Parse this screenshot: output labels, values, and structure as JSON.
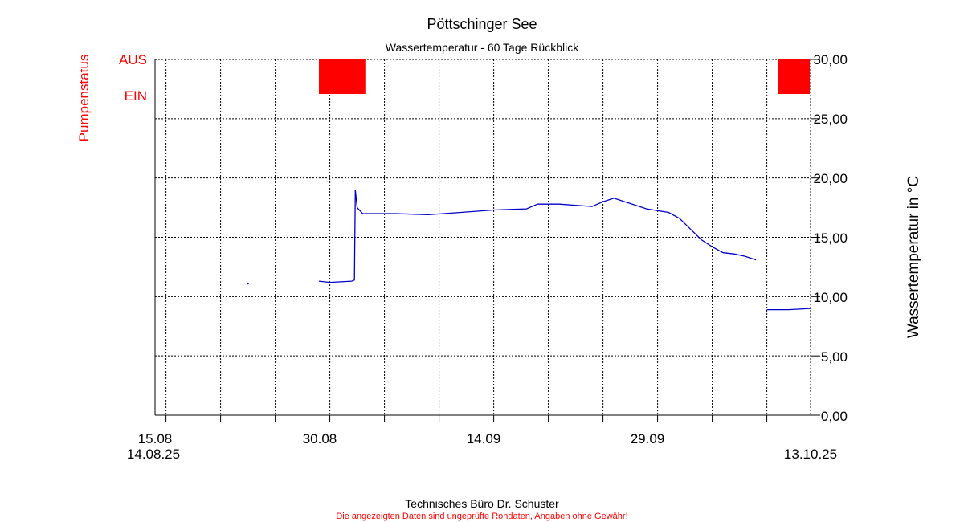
{
  "chart_data": {
    "type": "line",
    "title": "Pöttschinger See",
    "subtitle": "Wassertemperatur - 60 Tage Rückblick",
    "ylabel": "Wassertemperatur in °C",
    "ylim": [
      0,
      30
    ],
    "y_ticks": [
      "0,00",
      "5,00",
      "10,00",
      "15,00",
      "20,00",
      "25,00",
      "30,00"
    ],
    "x_range": [
      "2025-08-14",
      "2025-10-13"
    ],
    "x_ticks": [
      {
        "date": "2025-08-15",
        "label": "15.08"
      },
      {
        "date": "2025-08-30",
        "label": "30.08"
      },
      {
        "date": "2025-09-14",
        "label": "14.09"
      },
      {
        "date": "2025-09-29",
        "label": "29.09"
      }
    ],
    "x_start_label": "14.08.25",
    "x_end_label": "13.10.25",
    "grid": true,
    "series": [
      {
        "color": "#0000cc",
        "segments": [
          [
            [
              "2025-08-22T12:00",
              11.1
            ]
          ],
          [
            [
              "2025-08-29T00:00",
              11.3
            ],
            [
              "2025-08-30T00:00",
              11.2
            ],
            [
              "2025-09-01T00:00",
              11.3
            ],
            [
              "2025-09-01T06:00",
              11.4
            ],
            [
              "2025-09-01T08:00",
              19.0
            ],
            [
              "2025-09-01T12:00",
              17.5
            ],
            [
              "2025-09-02T00:00",
              17.0
            ],
            [
              "2025-09-05T00:00",
              17.0
            ],
            [
              "2025-09-08T00:00",
              16.9
            ],
            [
              "2025-09-11T00:00",
              17.1
            ],
            [
              "2025-09-14T00:00",
              17.3
            ],
            [
              "2025-09-17T00:00",
              17.4
            ],
            [
              "2025-09-18T00:00",
              17.8
            ],
            [
              "2025-09-20T00:00",
              17.8
            ],
            [
              "2025-09-23T00:00",
              17.6
            ],
            [
              "2025-09-24T00:00",
              18.0
            ],
            [
              "2025-09-25T00:00",
              18.3
            ],
            [
              "2025-09-26T00:00",
              18.0
            ],
            [
              "2025-09-28T00:00",
              17.4
            ],
            [
              "2025-09-30T00:00",
              17.1
            ],
            [
              "2025-10-01T00:00",
              16.6
            ],
            [
              "2025-10-02T00:00",
              15.7
            ],
            [
              "2025-10-03T00:00",
              14.8
            ],
            [
              "2025-10-04T00:00",
              14.2
            ],
            [
              "2025-10-05T00:00",
              13.7
            ],
            [
              "2025-10-06T00:00",
              13.6
            ],
            [
              "2025-10-07T00:00",
              13.4
            ],
            [
              "2025-10-08T00:00",
              13.1
            ]
          ],
          [
            [
              "2025-10-09T00:00",
              8.9
            ],
            [
              "2025-10-11T00:00",
              8.9
            ],
            [
              "2025-10-13T00:00",
              9.0
            ]
          ]
        ]
      }
    ],
    "pump_status": {
      "label": "Pumpenstatus",
      "on_label": "EIN",
      "off_label": "AUS",
      "color": "#ff0000",
      "on_periods": [
        [
          "2025-08-29T00:00",
          "2025-09-02T06:00"
        ],
        [
          "2025-10-10T00:00",
          "2025-10-14T00:00"
        ]
      ]
    }
  },
  "footer": {
    "company": "Technisches Büro Dr. Schuster",
    "disclaimer": "Die angezeigten Daten sind ungeprüfte Rohdaten, Angaben ohne Gewähr!"
  }
}
